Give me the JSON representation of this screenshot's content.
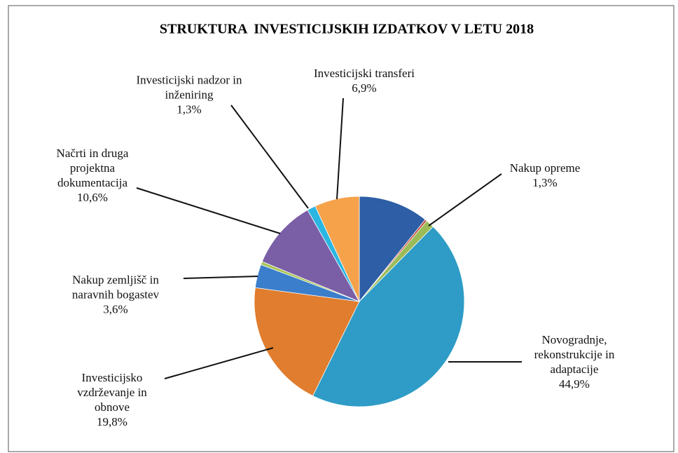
{
  "chart_data": {
    "type": "pie",
    "title": "STRUKTURA  INVESTICIJSKIH IZDATKOV V LETU 2018",
    "categories": [
      null,
      null,
      "Nakup opreme",
      "Novogradnje,\nrekonstrukcije in\nadaptacije",
      "Investicijsko\nvzdrževanje in\nobnove",
      "Nakup zemljišč in\nnaravnih bogastev",
      null,
      "Načrti in druga\nprojektna\ndokumentacija",
      "Investicijski nadzor in\ninženiring",
      "Investicijski transferi"
    ],
    "values": [
      10.8,
      0.3,
      1.3,
      44.9,
      19.8,
      3.6,
      0.5,
      10.6,
      1.3,
      6.9
    ],
    "value_labels": [
      null,
      null,
      "1,3%",
      "44,9%",
      "19,8%",
      "3,6%",
      null,
      "10,6%",
      "1,3%",
      "6,9%"
    ],
    "colors": [
      "#2d5ea6",
      "#c0392b",
      "#9bbb59",
      "#2e9cc6",
      "#e07d2e",
      "#3b7ecb",
      "#a9c452",
      "#7a5ea6",
      "#2bb6e2",
      "#f5a24b"
    ]
  }
}
